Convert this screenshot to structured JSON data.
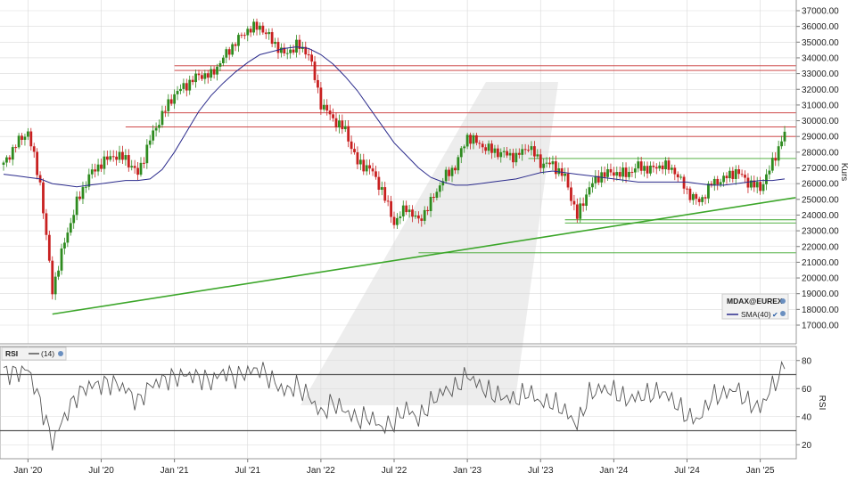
{
  "colors": {
    "up": "#2e8b1f",
    "down": "#c82020",
    "sma": "#2b2b8c",
    "resistance": "#c83030",
    "support": "#3ca62a",
    "grid": "#d9d9d9",
    "rsi_line": "#555555"
  },
  "chart_data": [
    {
      "type": "candlestick",
      "ylabel": "Kurs",
      "ylim": [
        16000,
        37500
      ],
      "yticks": [
        17000,
        18000,
        19000,
        20000,
        21000,
        22000,
        23000,
        24000,
        25000,
        26000,
        27000,
        28000,
        29000,
        30000,
        31000,
        32000,
        33000,
        34000,
        35000,
        36000,
        37000
      ],
      "grid": true,
      "legend_position": "bottom-right",
      "legend": [
        {
          "name": "MDAX@EUREX"
        },
        {
          "name": "SMA(40)"
        }
      ],
      "x": [
        "2019-11",
        "2019-12",
        "2020-01",
        "2020-02",
        "2020-03",
        "2020-04",
        "2020-05",
        "2020-06",
        "2020-07",
        "2020-08",
        "2020-09",
        "2020-10",
        "2020-11",
        "2020-12",
        "2021-01",
        "2021-02",
        "2021-03",
        "2021-04",
        "2021-05",
        "2021-06",
        "2021-07",
        "2021-08",
        "2021-09",
        "2021-10",
        "2021-11",
        "2021-12",
        "2022-01",
        "2022-02",
        "2022-03",
        "2022-04",
        "2022-05",
        "2022-06",
        "2022-07",
        "2022-08",
        "2022-09",
        "2022-10",
        "2022-11",
        "2022-12",
        "2023-01",
        "2023-02",
        "2023-03",
        "2023-04",
        "2023-05",
        "2023-06",
        "2023-07",
        "2023-08",
        "2023-09",
        "2023-10",
        "2023-11",
        "2023-12",
        "2024-01",
        "2024-02",
        "2024-03",
        "2024-04",
        "2024-05",
        "2024-06",
        "2024-07",
        "2024-08",
        "2024-09",
        "2024-10",
        "2024-11",
        "2024-12",
        "2025-01",
        "2025-02",
        "2025-03"
      ],
      "close": [
        27200,
        28500,
        29300,
        26000,
        19200,
        22300,
        24800,
        26500,
        27300,
        27800,
        27600,
        26600,
        28800,
        30400,
        31700,
        32300,
        32900,
        32900,
        34000,
        35000,
        35800,
        36000,
        35100,
        34200,
        34800,
        34300,
        31100,
        30100,
        29400,
        27300,
        27000,
        25600,
        23500,
        24500,
        23600,
        24800,
        26300,
        27100,
        29000,
        28500,
        28100,
        27900,
        27700,
        28400,
        27300,
        27200,
        26400,
        23900,
        25800,
        26600,
        26700,
        26600,
        27100,
        26900,
        27200,
        26800,
        25500,
        24800,
        26000,
        26300,
        26800,
        26100,
        25700,
        27300,
        29300
      ],
      "sma": [
        26600,
        26500,
        26400,
        26300,
        26000,
        25900,
        25800,
        25900,
        26000,
        26100,
        26200,
        26200,
        26300,
        26900,
        28000,
        29300,
        30600,
        31600,
        32400,
        33100,
        33700,
        34200,
        34400,
        34600,
        34700,
        34600,
        34200,
        33600,
        32800,
        31900,
        30800,
        29700,
        28600,
        27800,
        27000,
        26400,
        26100,
        25900,
        25900,
        26000,
        26100,
        26200,
        26300,
        26500,
        26700,
        26800,
        26700,
        26600,
        26500,
        26400,
        26300,
        26200,
        26100,
        26100,
        26100,
        26100,
        26100,
        26000,
        25900,
        25900,
        26000,
        26100,
        26200,
        26200,
        26300
      ],
      "horizontal_lines": {
        "resistance": [
          33500,
          33200,
          30500,
          29600,
          29000
        ],
        "support": [
          27600,
          23700,
          23500,
          21600
        ]
      },
      "trendline": {
        "from": [
          "2020-03",
          17700
        ],
        "to": [
          "2025-03",
          25000
        ]
      }
    },
    {
      "type": "line",
      "title": "RSI",
      "series": [
        {
          "name": "(14)"
        }
      ],
      "ylabel": "RSI",
      "ylim": [
        10,
        90
      ],
      "yticks": [
        20,
        40,
        60,
        80
      ],
      "levels": [
        30,
        70
      ],
      "x": [
        "2019-11",
        "2019-12",
        "2020-01",
        "2020-02",
        "2020-03",
        "2020-04",
        "2020-05",
        "2020-06",
        "2020-07",
        "2020-08",
        "2020-09",
        "2020-10",
        "2020-11",
        "2020-12",
        "2021-01",
        "2021-02",
        "2021-03",
        "2021-04",
        "2021-05",
        "2021-06",
        "2021-07",
        "2021-08",
        "2021-09",
        "2021-10",
        "2021-11",
        "2021-12",
        "2022-01",
        "2022-02",
        "2022-03",
        "2022-04",
        "2022-05",
        "2022-06",
        "2022-07",
        "2022-08",
        "2022-09",
        "2022-10",
        "2022-11",
        "2022-12",
        "2023-01",
        "2023-02",
        "2023-03",
        "2023-04",
        "2023-05",
        "2023-06",
        "2023-07",
        "2023-08",
        "2023-09",
        "2023-10",
        "2023-11",
        "2023-12",
        "2024-01",
        "2024-02",
        "2024-03",
        "2024-04",
        "2024-05",
        "2024-06",
        "2024-07",
        "2024-08",
        "2024-09",
        "2024-10",
        "2024-11",
        "2024-12",
        "2025-01",
        "2025-02",
        "2025-03"
      ],
      "values": [
        72,
        71,
        74,
        50,
        22,
        40,
        55,
        62,
        63,
        64,
        60,
        50,
        62,
        66,
        68,
        70,
        68,
        65,
        72,
        68,
        72,
        74,
        66,
        58,
        62,
        55,
        42,
        50,
        44,
        38,
        40,
        32,
        36,
        46,
        38,
        50,
        58,
        60,
        70,
        62,
        56,
        54,
        52,
        58,
        50,
        50,
        44,
        34,
        56,
        60,
        58,
        52,
        54,
        56,
        58,
        50,
        40,
        38,
        54,
        56,
        60,
        50,
        46,
        62,
        74
      ]
    }
  ],
  "xaxis": {
    "labels": [
      "Jan '20",
      "Jul '20",
      "Jan '21",
      "Jul '21",
      "Jan '22",
      "Jul '22",
      "Jan '23",
      "Jul '23",
      "Jan '24",
      "Jul '24",
      "Jan '25"
    ]
  }
}
